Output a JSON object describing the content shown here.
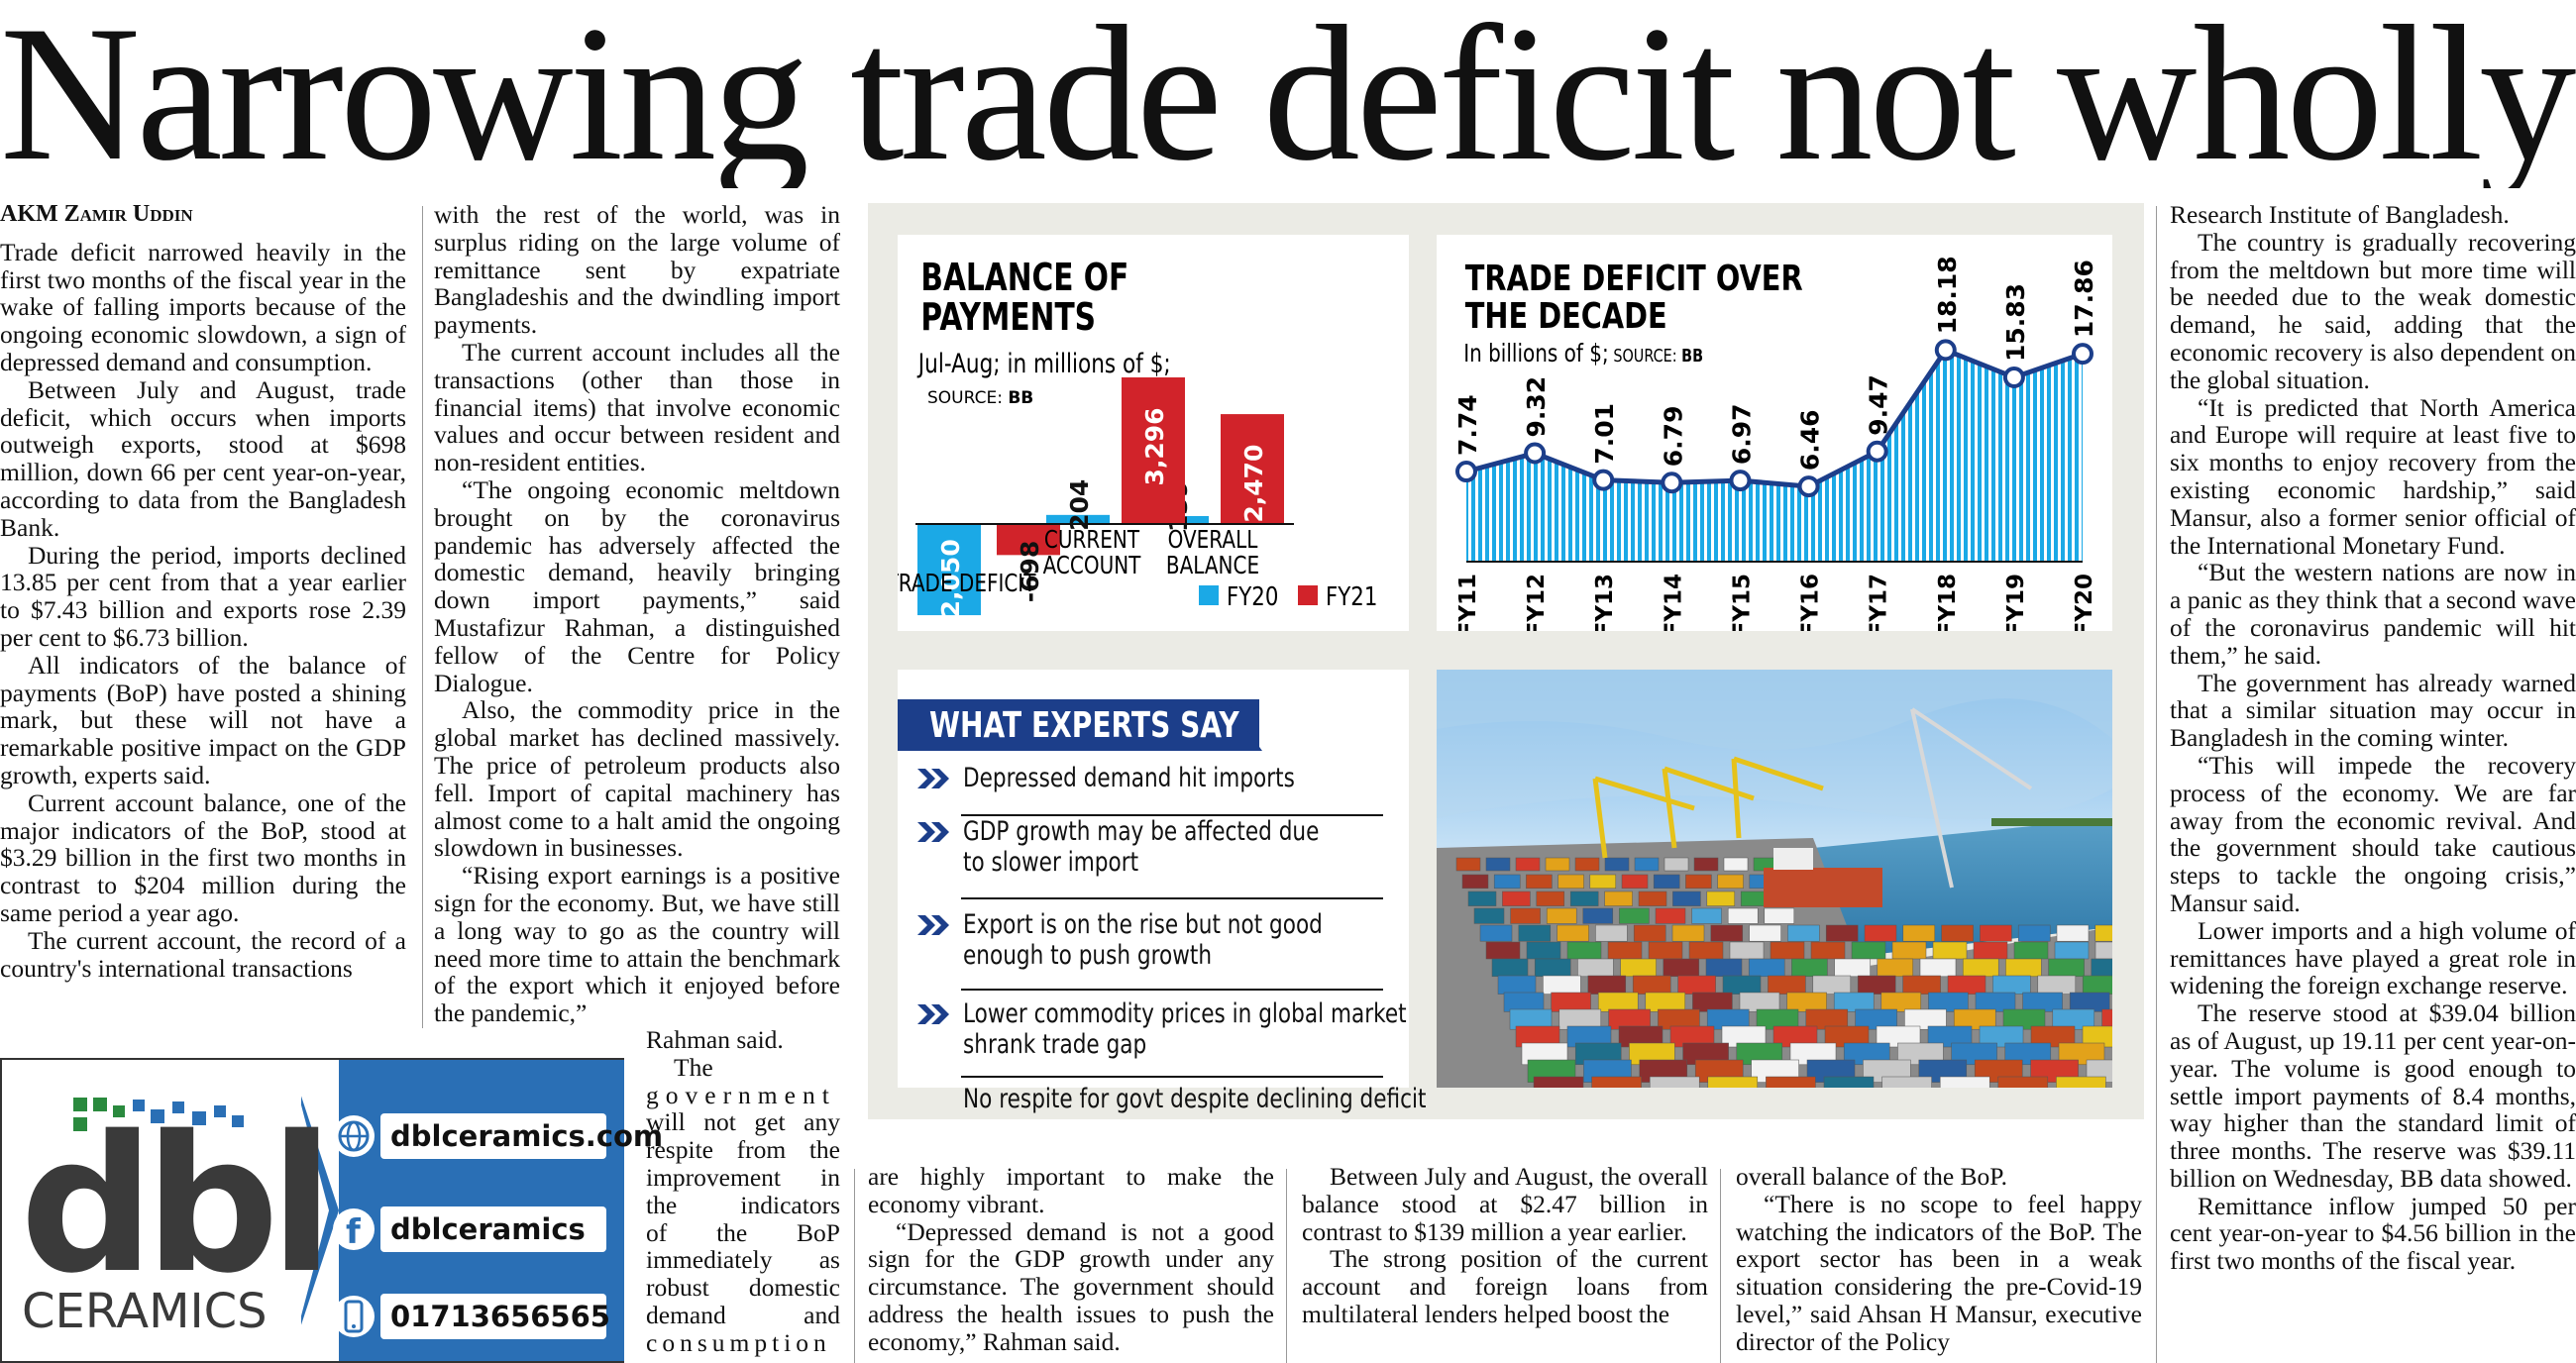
{
  "headline": "Narrowing trade deficit not wholly good",
  "byline": "AKM Zamir Uddin",
  "col1": [
    "Trade deficit narrowed heavily in the first two months of the fiscal year in the wake of falling imports because of the ongoing economic slowdown, a sign of depressed demand and consumption.",
    "Between July and August, trade deficit, which occurs when imports outweigh exports, stood at $698 million, down 66 per cent year-on-year, according to data from the Bangladesh Bank.",
    "During the period, imports declined 13.85 per cent from that a year earlier to $7.43 billion and exports rose 2.39 per cent to $6.73 billion.",
    "All indicators of the balance of payments (BoP) have posted a shining mark, but these will not have a remarkable positive impact on the GDP growth, experts said.",
    "Current account balance, one of the major indicators of the BoP, stood at $3.29 billion in the first two months in contrast to $204 million during the same period a year ago.",
    "The current account, the record of a country's international transactions"
  ],
  "col2": [
    "with the rest of the world, was in surplus riding on the large volume of remittance sent by expatriate Bangladeshis and the dwindling import payments.",
    "The current account includes all the transactions (other than those in financial items) that involve economic values and occur between resident and non-resident entities.",
    "“The ongoing economic meltdown brought on by the coronavirus pandemic has adversely affected the domestic demand, heavily bringing down import payments,” said Mustafizur Rahman, a distinguished fellow of the Centre for Policy Dialogue.",
    "Also, the commodity price in the global market has declined massively. The price of petroleum products also fell. Import of capital machinery has almost come to a halt amid the ongoing slowdown in businesses.",
    "“Rising export earnings is a positive sign for the economy. But, we have still a long way to go as the country will need more time to attain the benchmark of the export which it enjoyed before the pandemic,”"
  ],
  "col2_tail": [
    "Rahman said.",
    "The",
    "government",
    "will not get any",
    "respite from the",
    "improvement in",
    "the indicators",
    "of the BoP",
    "immediately as",
    "robust domestic",
    "demand and",
    "consumption"
  ],
  "col3b": "are highly important to make the economy vibrant.",
  "col3b2": "“Depressed demand is not a good sign for the GDP growth under any circumstance. The government should address the health issues to push the economy,” Rahman said.",
  "col4b": "Between July and August, the overall balance stood at $2.47 billion in contrast to $139 million a year earlier.",
  "col4b2": "The strong position of the current account and foreign loans from multilateral lenders helped boost the",
  "col5b": "overall balance of the BoP.",
  "col5b2": "“There is no scope to feel happy watching the indicators of the BoP. The export sector has been in a weak situation considering the pre-Covid-19 level,” said Ahsan H Mansur, executive director of the Policy",
  "col6": [
    "Research Institute of Bangladesh.",
    "The country is gradually recovering from the meltdown but more time will be needed due to the weak domestic demand, he said, adding that the economic recovery is also dependent on the global situation.",
    "“It is predicted that North America and Europe will require at least five to six months to enjoy recovery from the existing economic hardship,” said Mansur, also a former senior official of the International Monetary Fund.",
    "“But the western nations are now in a panic as they think that a second wave of the coronavirus pandemic will hit them,” he said.",
    "The government has already warned that a similar situation may occur in Bangladesh in the coming winter.",
    "“This will impede the recovery process of the economy. We are far away from the economic revival. And the government should take cautious steps to tackle the ongoing crisis,” Mansur said.",
    "Lower imports and a high volume of remittances have played a great role in widening the foreign exchange reserve.",
    "The reserve stood at $39.04 billion as of August, up 19.11 per cent year-on-year. The volume is good enough to settle import payments of 8.4 months, way higher than the standard limit of three months. The reserve was $39.11 billion on Wednesday, BB data showed.",
    "Remittance inflow jumped 50 per cent year-on-year to $4.56 billion in the first two months of the fiscal year."
  ],
  "colors": {
    "fy20": "#1ba9e6",
    "fy21": "#d1232a",
    "navy": "#1c3e8a",
    "adblue": "#2a6fb5"
  },
  "chart_data": [
    {
      "type": "bar",
      "title": "BALANCE OF PAYMENTS",
      "subtitle": "Jul-Aug; in millions of $;",
      "source_label": "SOURCE:",
      "source": "BB",
      "categories": [
        "TRADE DEFICIT",
        "CURRENT ACCOUNT",
        "OVERALL BALANCE"
      ],
      "category_lines": [
        [
          "TRADE DEFICIT"
        ],
        [
          "CURRENT",
          "ACCOUNT"
        ],
        [
          "OVERALL",
          "BALANCE"
        ]
      ],
      "series": [
        {
          "name": "FY20",
          "values": [
            -2050,
            204,
            139
          ],
          "labels": [
            "-2,050",
            "204",
            "139"
          ]
        },
        {
          "name": "FY21",
          "values": [
            -698,
            3296,
            2470
          ],
          "labels": [
            "-698",
            "3,296",
            "2,470"
          ]
        }
      ],
      "legend": "bottom-right"
    },
    {
      "type": "area",
      "title": "TRADE DEFICIT OVER THE DECADE",
      "title_lines": [
        "TRADE DEFICIT OVER",
        "THE DECADE"
      ],
      "subtitle": "In billions of $;",
      "source_label": "SOURCE:",
      "source": "BB",
      "x": [
        "FY11",
        "FY12",
        "FY13",
        "FY14",
        "FY15",
        "FY16",
        "FY17",
        "FY18",
        "FY19",
        "FY20"
      ],
      "values": [
        7.74,
        9.32,
        7.01,
        6.79,
        6.97,
        6.46,
        9.47,
        18.18,
        15.83,
        17.86
      ],
      "labels": [
        "7.74",
        "9.32",
        "7.01",
        "6.79",
        "6.97",
        "6.46",
        "9.47",
        "18.18",
        "15.83",
        "17.86"
      ],
      "ylim": [
        0,
        20
      ]
    }
  ],
  "experts": {
    "title": "WHAT EXPERTS SAY",
    "items": [
      [
        "Depressed demand hit imports"
      ],
      [
        "GDP growth may be affected due",
        "to slower import"
      ],
      [
        "Export is on the rise but not good",
        "enough to push growth"
      ],
      [
        "Lower commodity prices in global market",
        "shrank trade gap"
      ],
      [
        "No respite for govt despite declining deficit"
      ]
    ]
  },
  "ad": {
    "logo": "dbl",
    "logo_sub": "CERAMICS",
    "web": "dblceramics.com",
    "facebook": "dblceramics",
    "phone": "01713656565"
  }
}
